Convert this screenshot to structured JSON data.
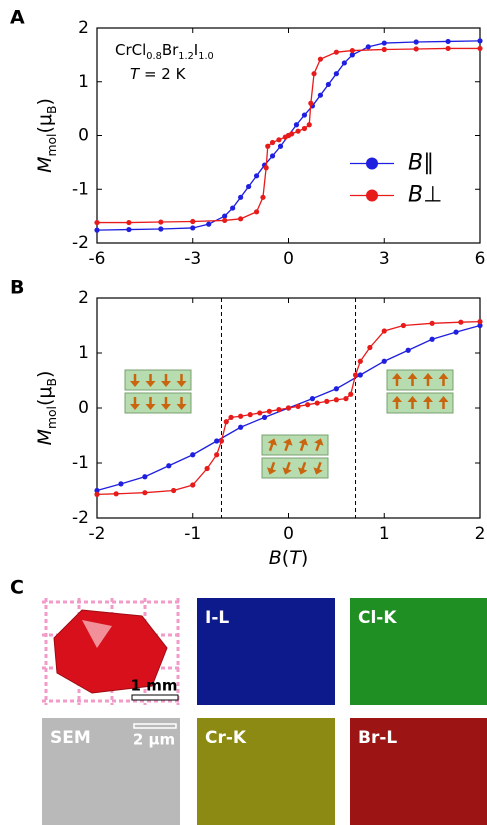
{
  "chart_data": [
    {
      "type": "line",
      "panel": "A",
      "formula_parts": [
        "CrCl",
        "0.8",
        "Br",
        "1.2",
        "I",
        "1.0"
      ],
      "temperature_parts": [
        "T",
        " = 2 K"
      ],
      "ylabel_parts": [
        "M",
        "mol",
        "(μ",
        "B",
        ")"
      ],
      "xlim": [
        -6,
        6
      ],
      "xticks": [
        -6,
        -3,
        0,
        3,
        6
      ],
      "ylim": [
        -2,
        2
      ],
      "yticks": [
        -2,
        -1,
        0,
        1,
        2
      ],
      "legend": "center right",
      "series": [
        {
          "name": "B∥",
          "color": "#1f1fe0",
          "x": [
            -6,
            -5,
            -4,
            -3,
            -2.5,
            -2,
            -1.75,
            -1.5,
            -1.25,
            -1,
            -0.75,
            -0.5,
            -0.25,
            0,
            0.25,
            0.5,
            0.75,
            1,
            1.25,
            1.5,
            1.75,
            2,
            2.5,
            3,
            4,
            5,
            6
          ],
          "values": [
            -1.76,
            -1.75,
            -1.74,
            -1.72,
            -1.65,
            -1.5,
            -1.35,
            -1.15,
            -0.95,
            -0.75,
            -0.55,
            -0.38,
            -0.2,
            0,
            0.2,
            0.38,
            0.55,
            0.75,
            0.95,
            1.15,
            1.35,
            1.5,
            1.65,
            1.72,
            1.74,
            1.75,
            1.76
          ]
        },
        {
          "name": "B⊥",
          "color": "#e81b1b",
          "x": [
            -6,
            -5,
            -4,
            -3,
            -2,
            -1.5,
            -1,
            -0.8,
            -0.7,
            -0.65,
            -0.5,
            -0.3,
            -0.1,
            0,
            0.1,
            0.3,
            0.5,
            0.65,
            0.7,
            0.8,
            1,
            1.5,
            2,
            3,
            4,
            5,
            6
          ],
          "values": [
            -1.62,
            -1.62,
            -1.61,
            -1.6,
            -1.58,
            -1.55,
            -1.42,
            -1.15,
            -0.6,
            -0.2,
            -0.13,
            -0.08,
            -0.03,
            0,
            0.03,
            0.08,
            0.13,
            0.2,
            0.6,
            1.15,
            1.42,
            1.55,
            1.58,
            1.6,
            1.61,
            1.62,
            1.62
          ]
        }
      ]
    },
    {
      "type": "line",
      "panel": "B",
      "ylabel_parts": [
        "M",
        "mol",
        "(μ",
        "B",
        ")"
      ],
      "xlabel_parts": [
        "B",
        "(",
        "T",
        ")"
      ],
      "xlim": [
        -2,
        2
      ],
      "xticks": [
        -2,
        -1,
        0,
        1,
        2
      ],
      "ylim": [
        -2,
        2
      ],
      "yticks": [
        -2,
        -1,
        0,
        1,
        2
      ],
      "vlines": [
        -0.7,
        0.7
      ],
      "series": [
        {
          "color": "#1f1fe0",
          "x": [
            -2,
            -1.75,
            -1.5,
            -1.25,
            -1,
            -0.75,
            -0.5,
            -0.25,
            0,
            0.25,
            0.5,
            0.75,
            1,
            1.25,
            1.5,
            1.75,
            2
          ],
          "values": [
            -1.5,
            -1.38,
            -1.25,
            -1.05,
            -0.85,
            -0.6,
            -0.35,
            -0.17,
            0,
            0.17,
            0.35,
            0.6,
            0.85,
            1.05,
            1.25,
            1.38,
            1.5
          ]
        },
        {
          "color": "#e81b1b",
          "x": [
            -2,
            -1.8,
            -1.5,
            -1.2,
            -1,
            -0.85,
            -0.75,
            -0.7,
            -0.65,
            -0.6,
            -0.5,
            -0.4,
            -0.3,
            -0.2,
            -0.1,
            0,
            0.1,
            0.2,
            0.3,
            0.4,
            0.5,
            0.6,
            0.65,
            0.7,
            0.75,
            0.85,
            1,
            1.2,
            1.5,
            1.8,
            2
          ],
          "values": [
            -1.57,
            -1.56,
            -1.54,
            -1.5,
            -1.4,
            -1.1,
            -0.85,
            -0.6,
            -0.25,
            -0.17,
            -0.15,
            -0.12,
            -0.09,
            -0.06,
            -0.03,
            0,
            0.03,
            0.06,
            0.09,
            0.12,
            0.15,
            0.17,
            0.25,
            0.6,
            0.85,
            1.1,
            1.4,
            1.5,
            1.54,
            1.56,
            1.57
          ]
        }
      ]
    }
  ],
  "image_panel": {
    "panel": "C",
    "tiles": [
      {
        "scale": "1 mm"
      },
      {
        "label": "I-L"
      },
      {
        "label": "Cl-K"
      },
      {
        "label": "SEM",
        "scale": "2 μm"
      },
      {
        "label": "Cr-K"
      },
      {
        "label": "Br-L"
      }
    ]
  }
}
